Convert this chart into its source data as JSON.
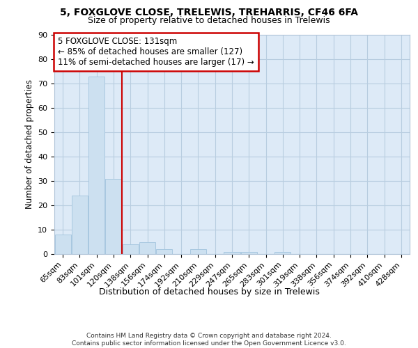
{
  "title_line1": "5, FOXGLOVE CLOSE, TRELEWIS, TREHARRIS, CF46 6FA",
  "title_line2": "Size of property relative to detached houses in Trelewis",
  "xlabel": "Distribution of detached houses by size in Trelewis",
  "ylabel": "Number of detached properties",
  "categories": [
    "65sqm",
    "83sqm",
    "101sqm",
    "120sqm",
    "138sqm",
    "156sqm",
    "174sqm",
    "192sqm",
    "210sqm",
    "229sqm",
    "247sqm",
    "265sqm",
    "283sqm",
    "301sqm",
    "319sqm",
    "338sqm",
    "356sqm",
    "374sqm",
    "392sqm",
    "410sqm",
    "428sqm"
  ],
  "values": [
    8,
    24,
    73,
    31,
    4,
    5,
    2,
    0,
    2,
    0,
    1,
    1,
    0,
    1,
    0,
    0,
    0,
    0,
    0,
    0,
    0
  ],
  "bar_color": "#cce0f0",
  "bar_edge_color": "#a8c8e0",
  "vline_x": 3.5,
  "vline_color": "#cc0000",
  "annotation_text": "5 FOXGLOVE CLOSE: 131sqm\n← 85% of detached houses are smaller (127)\n11% of semi-detached houses are larger (17) →",
  "annotation_box_color": "#ffffff",
  "annotation_box_edge_color": "#cc0000",
  "ylim": [
    0,
    90
  ],
  "yticks": [
    0,
    10,
    20,
    30,
    40,
    50,
    60,
    70,
    80,
    90
  ],
  "footer_text": "Contains HM Land Registry data © Crown copyright and database right 2024.\nContains public sector information licensed under the Open Government Licence v3.0.",
  "bg_color": "#ffffff",
  "plot_bg_color": "#ddeaf7",
  "grid_color": "#b8cde0"
}
